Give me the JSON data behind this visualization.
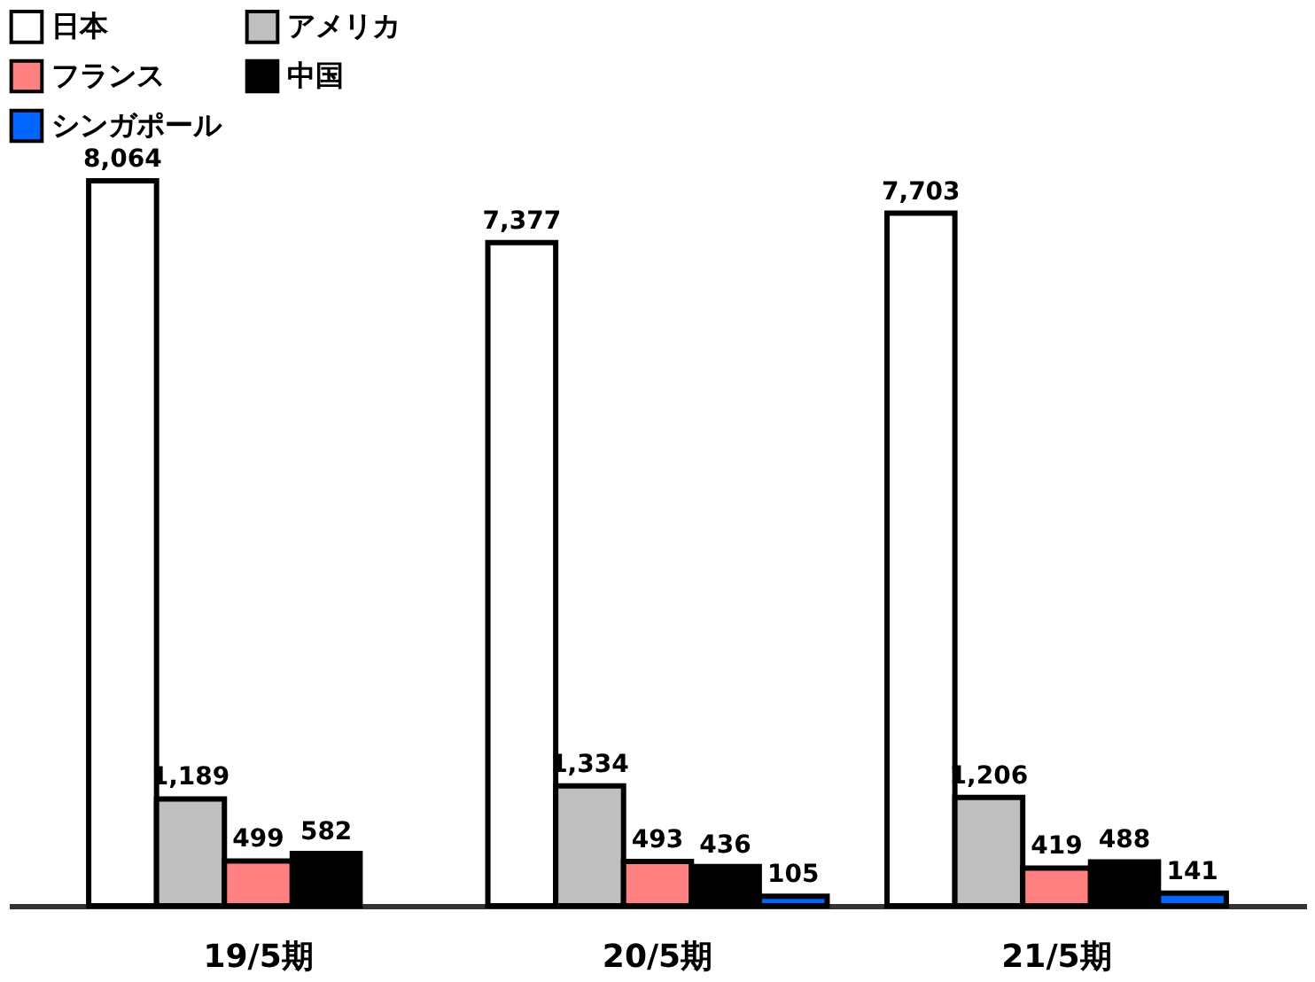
{
  "chart_data": {
    "type": "bar",
    "categories": [
      "19/5期",
      "20/5期",
      "21/5期"
    ],
    "series": [
      {
        "name": "日本",
        "color": "#ffffff",
        "values": [
          8064,
          7377,
          7703
        ],
        "value_labels": [
          "8,064",
          "7,377",
          "7,703"
        ]
      },
      {
        "name": "アメリカ",
        "color": "#bfbfbf",
        "values": [
          1189,
          1334,
          1206
        ],
        "value_labels": [
          "1,189",
          "1,334",
          "1,206"
        ]
      },
      {
        "name": "フランス",
        "color": "#ff8080",
        "values": [
          499,
          493,
          419
        ],
        "value_labels": [
          "499",
          "493",
          "419"
        ]
      },
      {
        "name": "中国",
        "color": "#000000",
        "values": [
          582,
          436,
          488
        ],
        "value_labels": [
          "582",
          "436",
          "488"
        ]
      },
      {
        "name": "シンガポール",
        "color": "#0066ff",
        "values": [
          null,
          105,
          141
        ],
        "value_labels": [
          null,
          "105",
          "141"
        ]
      }
    ],
    "legend": "top",
    "grid": false
  }
}
